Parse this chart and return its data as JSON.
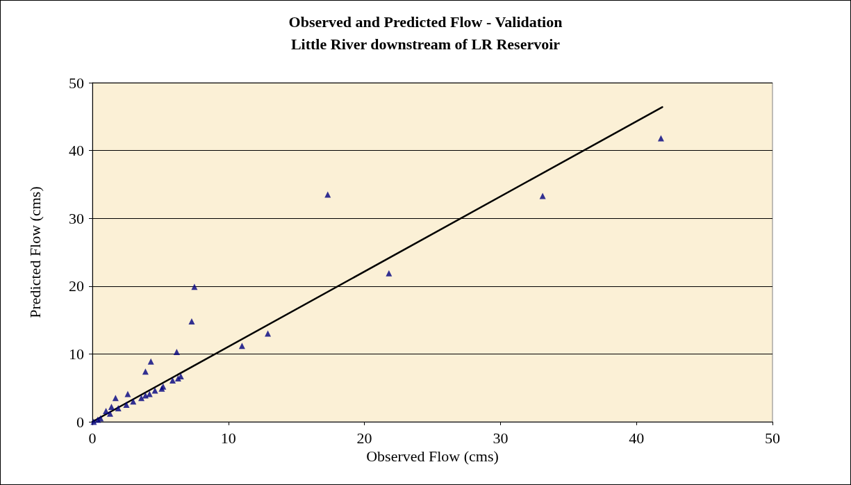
{
  "chart_data": {
    "type": "scatter",
    "title": "Observed and Predicted Flow - Validation",
    "subtitle": "Little River downstream of LR Reservoir",
    "xlabel": "Observed Flow (cms)",
    "ylabel": "Predicted Flow (cms)",
    "xlim": [
      0,
      50
    ],
    "ylim": [
      0,
      50
    ],
    "xticks": [
      0,
      10,
      20,
      30,
      40,
      50
    ],
    "yticks": [
      0,
      10,
      20,
      30,
      40,
      50
    ],
    "grid": "y",
    "series": [
      {
        "marker": "triangle",
        "color": "#000080",
        "x": [
          0.1,
          0.4,
          0.6,
          1.0,
          1.3,
          1.4,
          1.7,
          1.9,
          2.5,
          2.6,
          3.0,
          3.6,
          3.9,
          3.9,
          4.2,
          4.3,
          4.6,
          5.1,
          5.2,
          5.9,
          6.2,
          6.3,
          6.5,
          7.3,
          7.5,
          11.0,
          12.9,
          17.3,
          21.8,
          33.1,
          41.8
        ],
        "values": [
          0,
          0.3,
          0.5,
          1.6,
          1.2,
          2.2,
          3.5,
          2.0,
          2.5,
          4.1,
          3.0,
          3.5,
          3.9,
          7.4,
          4.1,
          8.9,
          4.6,
          4.9,
          5.2,
          6.1,
          10.3,
          6.4,
          6.7,
          14.8,
          19.9,
          11.2,
          13,
          33.5,
          21.9,
          33.3,
          41.8
        ]
      },
      {
        "type": "line",
        "marker": "none",
        "line_style": "solid",
        "color": "#000000",
        "x": [
          0,
          41.9
        ],
        "values": [
          0,
          46.4
        ]
      }
    ]
  }
}
